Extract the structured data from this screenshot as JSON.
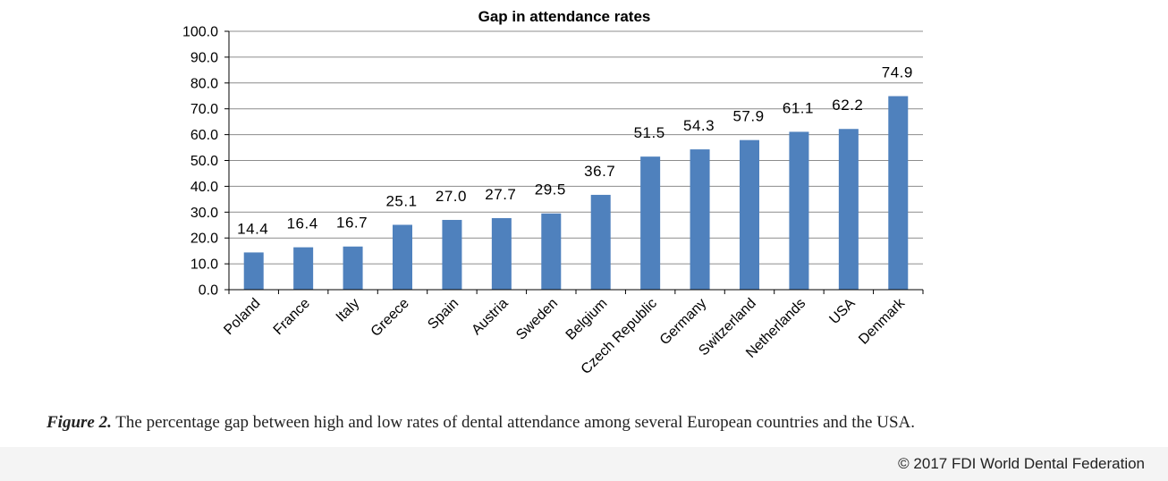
{
  "chart_data": {
    "type": "bar",
    "title": "Gap in attendance rates",
    "categories": [
      "Poland",
      "France",
      "Italy",
      "Greece",
      "Spain",
      "Austria",
      "Sweden",
      "Belgium",
      "Czech Republic",
      "Germany",
      "Switzerland",
      "Netherlands",
      "USA",
      "Denmark"
    ],
    "values": [
      14.4,
      16.4,
      16.7,
      25.1,
      27.0,
      27.7,
      29.5,
      36.7,
      51.5,
      54.3,
      57.9,
      61.1,
      62.2,
      74.9
    ],
    "data_labels": [
      "14.4",
      "16.4",
      "16.7",
      "25.1",
      "27.0",
      "27.7",
      "29.5",
      "36.7",
      "51.5",
      "54.3",
      "57.9",
      "61.1",
      "62.2",
      "74.9"
    ],
    "ylim": [
      0,
      100
    ],
    "yticks": [
      "0.0",
      "10.0",
      "20.0",
      "30.0",
      "40.0",
      "50.0",
      "60.0",
      "70.0",
      "80.0",
      "90.0",
      "100.0"
    ],
    "xlabel": "",
    "ylabel": "",
    "grid": true,
    "bar_color": "#4f81bd",
    "grid_color": "#8c8c8c"
  },
  "caption": {
    "label": "Figure 2.",
    "text": "The percentage gap between high and low rates of dental attendance among several European countries and the USA."
  },
  "copyright": "© 2017 FDI World Dental Federation"
}
